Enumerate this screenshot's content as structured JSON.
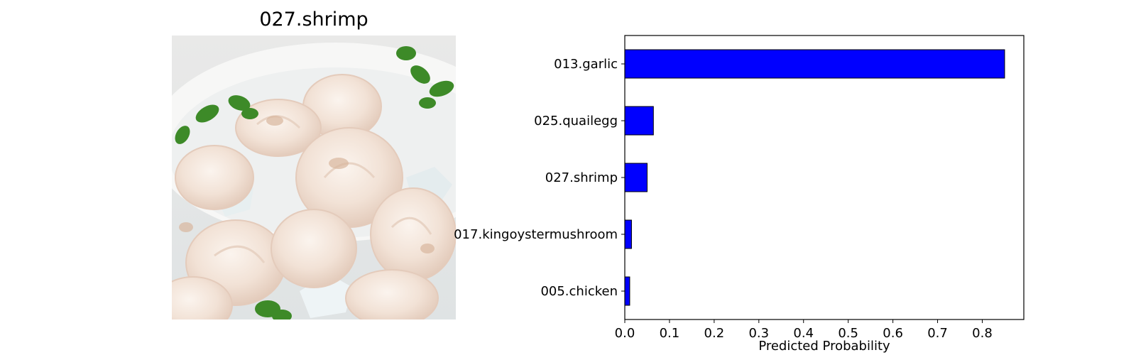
{
  "image_panel": {
    "title": "027.shrimp",
    "photo_alt": "Bowl of peeled raw shrimp on ice garnished with parsley"
  },
  "chart_data": {
    "type": "bar",
    "orientation": "horizontal",
    "categories": [
      "013.garlic",
      "025.quailegg",
      "027.shrimp",
      "017.kingoystermushroom",
      "005.chicken"
    ],
    "values": [
      0.85,
      0.064,
      0.05,
      0.015,
      0.011
    ],
    "xlabel": "Predicted Probability",
    "ylabel": "",
    "xlim": [
      0,
      0.893
    ],
    "xticks": [
      0.0,
      0.1,
      0.2,
      0.3,
      0.4,
      0.5,
      0.6,
      0.7,
      0.8
    ],
    "xtick_labels": [
      "0.0",
      "0.1",
      "0.2",
      "0.3",
      "0.4",
      "0.5",
      "0.6",
      "0.7",
      "0.8"
    ],
    "bar_color": "#0000ff",
    "bar_edge_color": "#000000",
    "grid": false
  }
}
